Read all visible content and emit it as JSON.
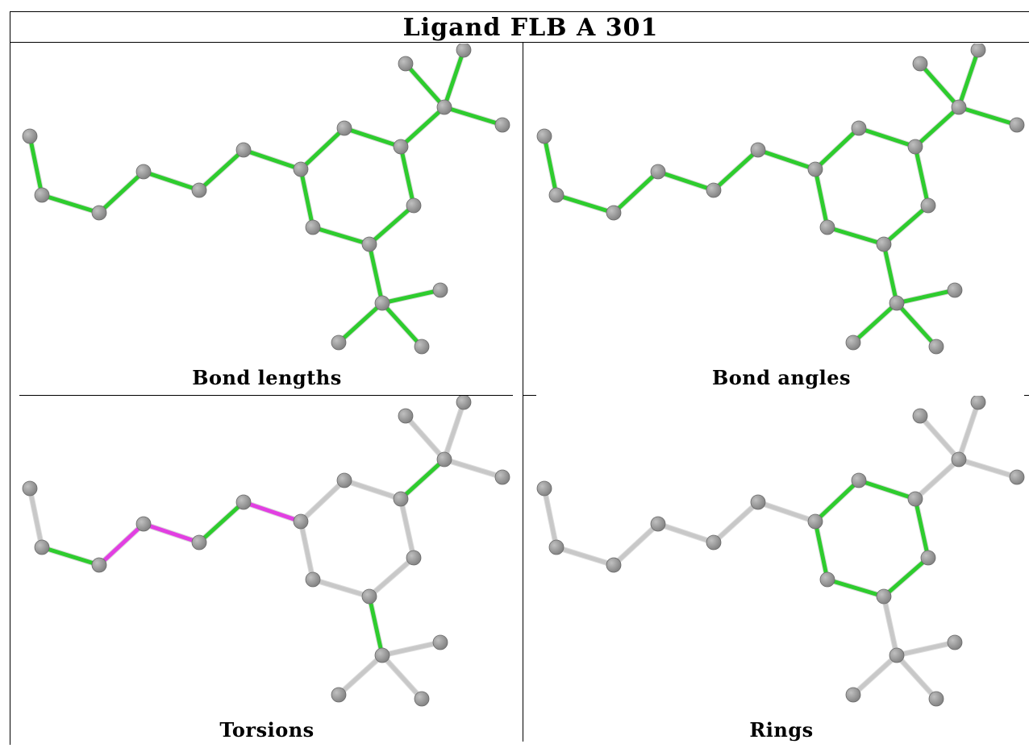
{
  "title": "Ligand FLB A 301",
  "panels": [
    {
      "label": "Bond lengths",
      "scheme": "all-green"
    },
    {
      "label": "Bond angles",
      "scheme": "all-green"
    },
    {
      "label": "Torsions",
      "scheme": "torsions"
    },
    {
      "label": "Rings",
      "scheme": "rings"
    }
  ],
  "colors": {
    "green_bond": "#2ecc2e",
    "magenta_bond": "#e23fe2",
    "grey_bond": "#c8c8c8",
    "atom": "#808080",
    "atom_highlight": "#c0c0c0"
  }
}
